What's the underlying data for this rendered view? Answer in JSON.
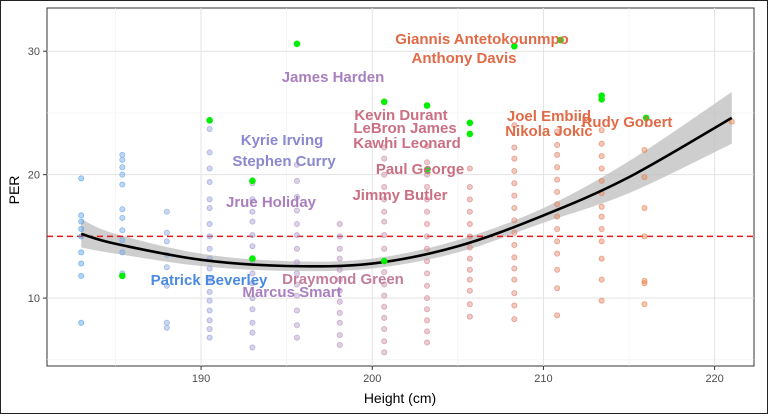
{
  "chart_data": {
    "type": "scatter",
    "xlabel": "Height (cm)",
    "ylabel": "PER",
    "xlim": [
      181,
      222.3
    ],
    "ylim": [
      4.5,
      33.5
    ],
    "x_ticks": [
      190,
      200,
      210,
      220
    ],
    "y_ticks": [
      10,
      20,
      30
    ],
    "grid": true,
    "reference_line": {
      "y": 15,
      "style": "dashed",
      "color": "#e41a1c"
    },
    "trend_curve": {
      "color": "#000000",
      "band_color": "#bdbdbd",
      "x": [
        183,
        185,
        190,
        195,
        200,
        205,
        210,
        215,
        221
      ],
      "y": [
        15.2,
        14.4,
        13.1,
        12.6,
        12.8,
        14.2,
        16.7,
        19.8,
        24.6
      ],
      "lower": [
        14.1,
        13.6,
        12.6,
        12.2,
        12.4,
        13.7,
        16.1,
        18.5,
        22.5
      ],
      "upper": [
        16.4,
        15.2,
        13.6,
        13.0,
        13.2,
        14.7,
        17.3,
        21.1,
        26.7
      ]
    },
    "background_points": [
      {
        "x": 183,
        "y": [
          8.0,
          11.8,
          12.8,
          13.7,
          15.0,
          15.6,
          16.2,
          16.7,
          19.7
        ],
        "color": "#56a0e8"
      },
      {
        "x": 185.4,
        "y": [
          12.0,
          13.7,
          14.7,
          15.5,
          16.5,
          17.2,
          19.2,
          20.0,
          20.6,
          21.2,
          21.6
        ],
        "color": "#6ea7e6"
      },
      {
        "x": 188,
        "y": [
          7.6,
          8.0,
          11.0,
          12.5,
          13.5,
          14.6,
          15.3,
          17.0
        ],
        "color": "#8aa6dd"
      },
      {
        "x": 190.5,
        "y": [
          6.8,
          7.5,
          8.2,
          9.0,
          9.8,
          10.5,
          11.5,
          12.4,
          13.2,
          14.0,
          15.0,
          16.0,
          17.3,
          18.0,
          19.4,
          20.5,
          21.8,
          23.7
        ],
        "color": "#9aa0d9"
      },
      {
        "x": 193,
        "y": [
          6.0,
          7.2,
          8.0,
          9.1,
          10.0,
          11.2,
          12.0,
          13.0,
          14.2,
          15.1,
          16.2,
          17.0,
          18.0,
          19.3
        ],
        "color": "#a49bd2"
      },
      {
        "x": 195.6,
        "y": [
          6.8,
          7.8,
          9.0,
          10.2,
          11.1,
          12.0,
          12.9,
          14.0,
          15.1,
          16.0,
          17.1,
          18.2,
          19.5,
          20.8
        ],
        "color": "#b198c9"
      },
      {
        "x": 198.1,
        "y": [
          6.2,
          7.0,
          8.0,
          8.8,
          9.7,
          10.6,
          11.5,
          12.3,
          13.2,
          14.0,
          15.0,
          16.0
        ],
        "color": "#bb92c0"
      },
      {
        "x": 200.7,
        "y": [
          5.6,
          6.5,
          7.5,
          8.4,
          9.3,
          10.2,
          11.1,
          12.1,
          13.0,
          14.0,
          15.1,
          16.2,
          17.0,
          18.0,
          19.0,
          20.0,
          21.3,
          22.2
        ],
        "color": "#c98fab"
      },
      {
        "x": 203.2,
        "y": [
          6.4,
          7.3,
          8.2,
          9.1,
          10.0,
          11.0,
          12.0,
          13.0,
          14.0,
          15.0,
          16.0,
          17.0,
          18.0,
          19.0,
          20.0,
          21.0,
          22.3
        ],
        "color": "#d48b95"
      },
      {
        "x": 205.7,
        "y": [
          8.5,
          9.5,
          10.6,
          11.5,
          12.3,
          13.2,
          14.1,
          15.0,
          16.0,
          17.0,
          18.0,
          19.0,
          20.5
        ],
        "color": "#d98680"
      },
      {
        "x": 208.3,
        "y": [
          8.3,
          9.4,
          10.4,
          11.5,
          12.4,
          13.3,
          14.3,
          15.3,
          16.3,
          17.3,
          18.3,
          19.3,
          20.3,
          21.3,
          22.2,
          24.0
        ],
        "color": "#dd8470"
      },
      {
        "x": 210.8,
        "y": [
          8.6,
          10.8,
          12.3,
          13.6,
          14.6,
          15.6,
          16.6,
          17.6,
          18.6,
          19.6,
          20.6,
          21.6,
          22.4,
          23.5
        ],
        "color": "#e08366"
      },
      {
        "x": 213.4,
        "y": [
          9.8,
          11.5,
          13.2,
          14.6,
          15.6,
          16.6,
          17.4,
          18.5,
          19.5,
          20.5,
          21.5,
          22.5,
          23.6
        ],
        "color": "#e2835c"
      },
      {
        "x": 215.9,
        "y": [
          9.5,
          11.2,
          11.4,
          15.0,
          17.3,
          19.8,
          22.0
        ],
        "color": "#e4844f"
      },
      {
        "x": 221,
        "y": [
          24.3
        ],
        "color": "#e88048"
      }
    ],
    "highlight_color": "#00ee00",
    "highlighted_players": [
      {
        "name": "Giannis Antetokounmpo",
        "x": 211,
        "y": 30.9,
        "label_color": "#e16a47"
      },
      {
        "name": "Anthony Davis",
        "x": 208.3,
        "y": 30.4,
        "label_color": "#e16a47"
      },
      {
        "name": "James Harden",
        "x": 195.6,
        "y": 30.6,
        "label_color": "#a97fbe"
      },
      {
        "name": "Kevin Durant",
        "x": 200.7,
        "y": 25.9,
        "label_color": "#cb6f83"
      },
      {
        "name": "LeBron James",
        "x": 203.2,
        "y": 25.6,
        "label_color": "#cb6f83"
      },
      {
        "name": "Kawhi Leonard",
        "x": 205.7,
        "y": 24.2,
        "label_color": "#cb6f83"
      },
      {
        "name": "Joel Embiid",
        "x": 213.4,
        "y": 26.4,
        "label_color": "#e16a47"
      },
      {
        "name": "Rudy Gobert",
        "x": 216,
        "y": 24.6,
        "label_color": "#e16a47"
      },
      {
        "name": "Nikola Jokic",
        "x": 213.4,
        "y": 26.1,
        "label_color": "#e16a47"
      },
      {
        "name": "Kyrie Irving",
        "x": 190.5,
        "y": 24.4,
        "label_color": "#8b88d0"
      },
      {
        "name": "Stephen Curry",
        "x": 190.5,
        "y": 24.4,
        "label_color": "#8b88d0"
      },
      {
        "name": "Paul George",
        "x": 205.7,
        "y": 23.3,
        "label_color": "#cb6f83"
      },
      {
        "name": "Jrue Holiday",
        "x": 193,
        "y": 19.5,
        "label_color": "#a97fbe"
      },
      {
        "name": "Jimmy Butler",
        "x": 203.2,
        "y": 20.4,
        "label_color": "#cb6f83"
      },
      {
        "name": "Patrick Beverley",
        "x": 185.4,
        "y": 11.8,
        "label_color": "#4a8ae0"
      },
      {
        "name": "Draymond Green",
        "x": 200.7,
        "y": 13.0,
        "label_color": "#c27c9c"
      },
      {
        "name": "Marcus Smart",
        "x": 193,
        "y": 13.2,
        "label_color": "#a97fbe"
      }
    ]
  }
}
